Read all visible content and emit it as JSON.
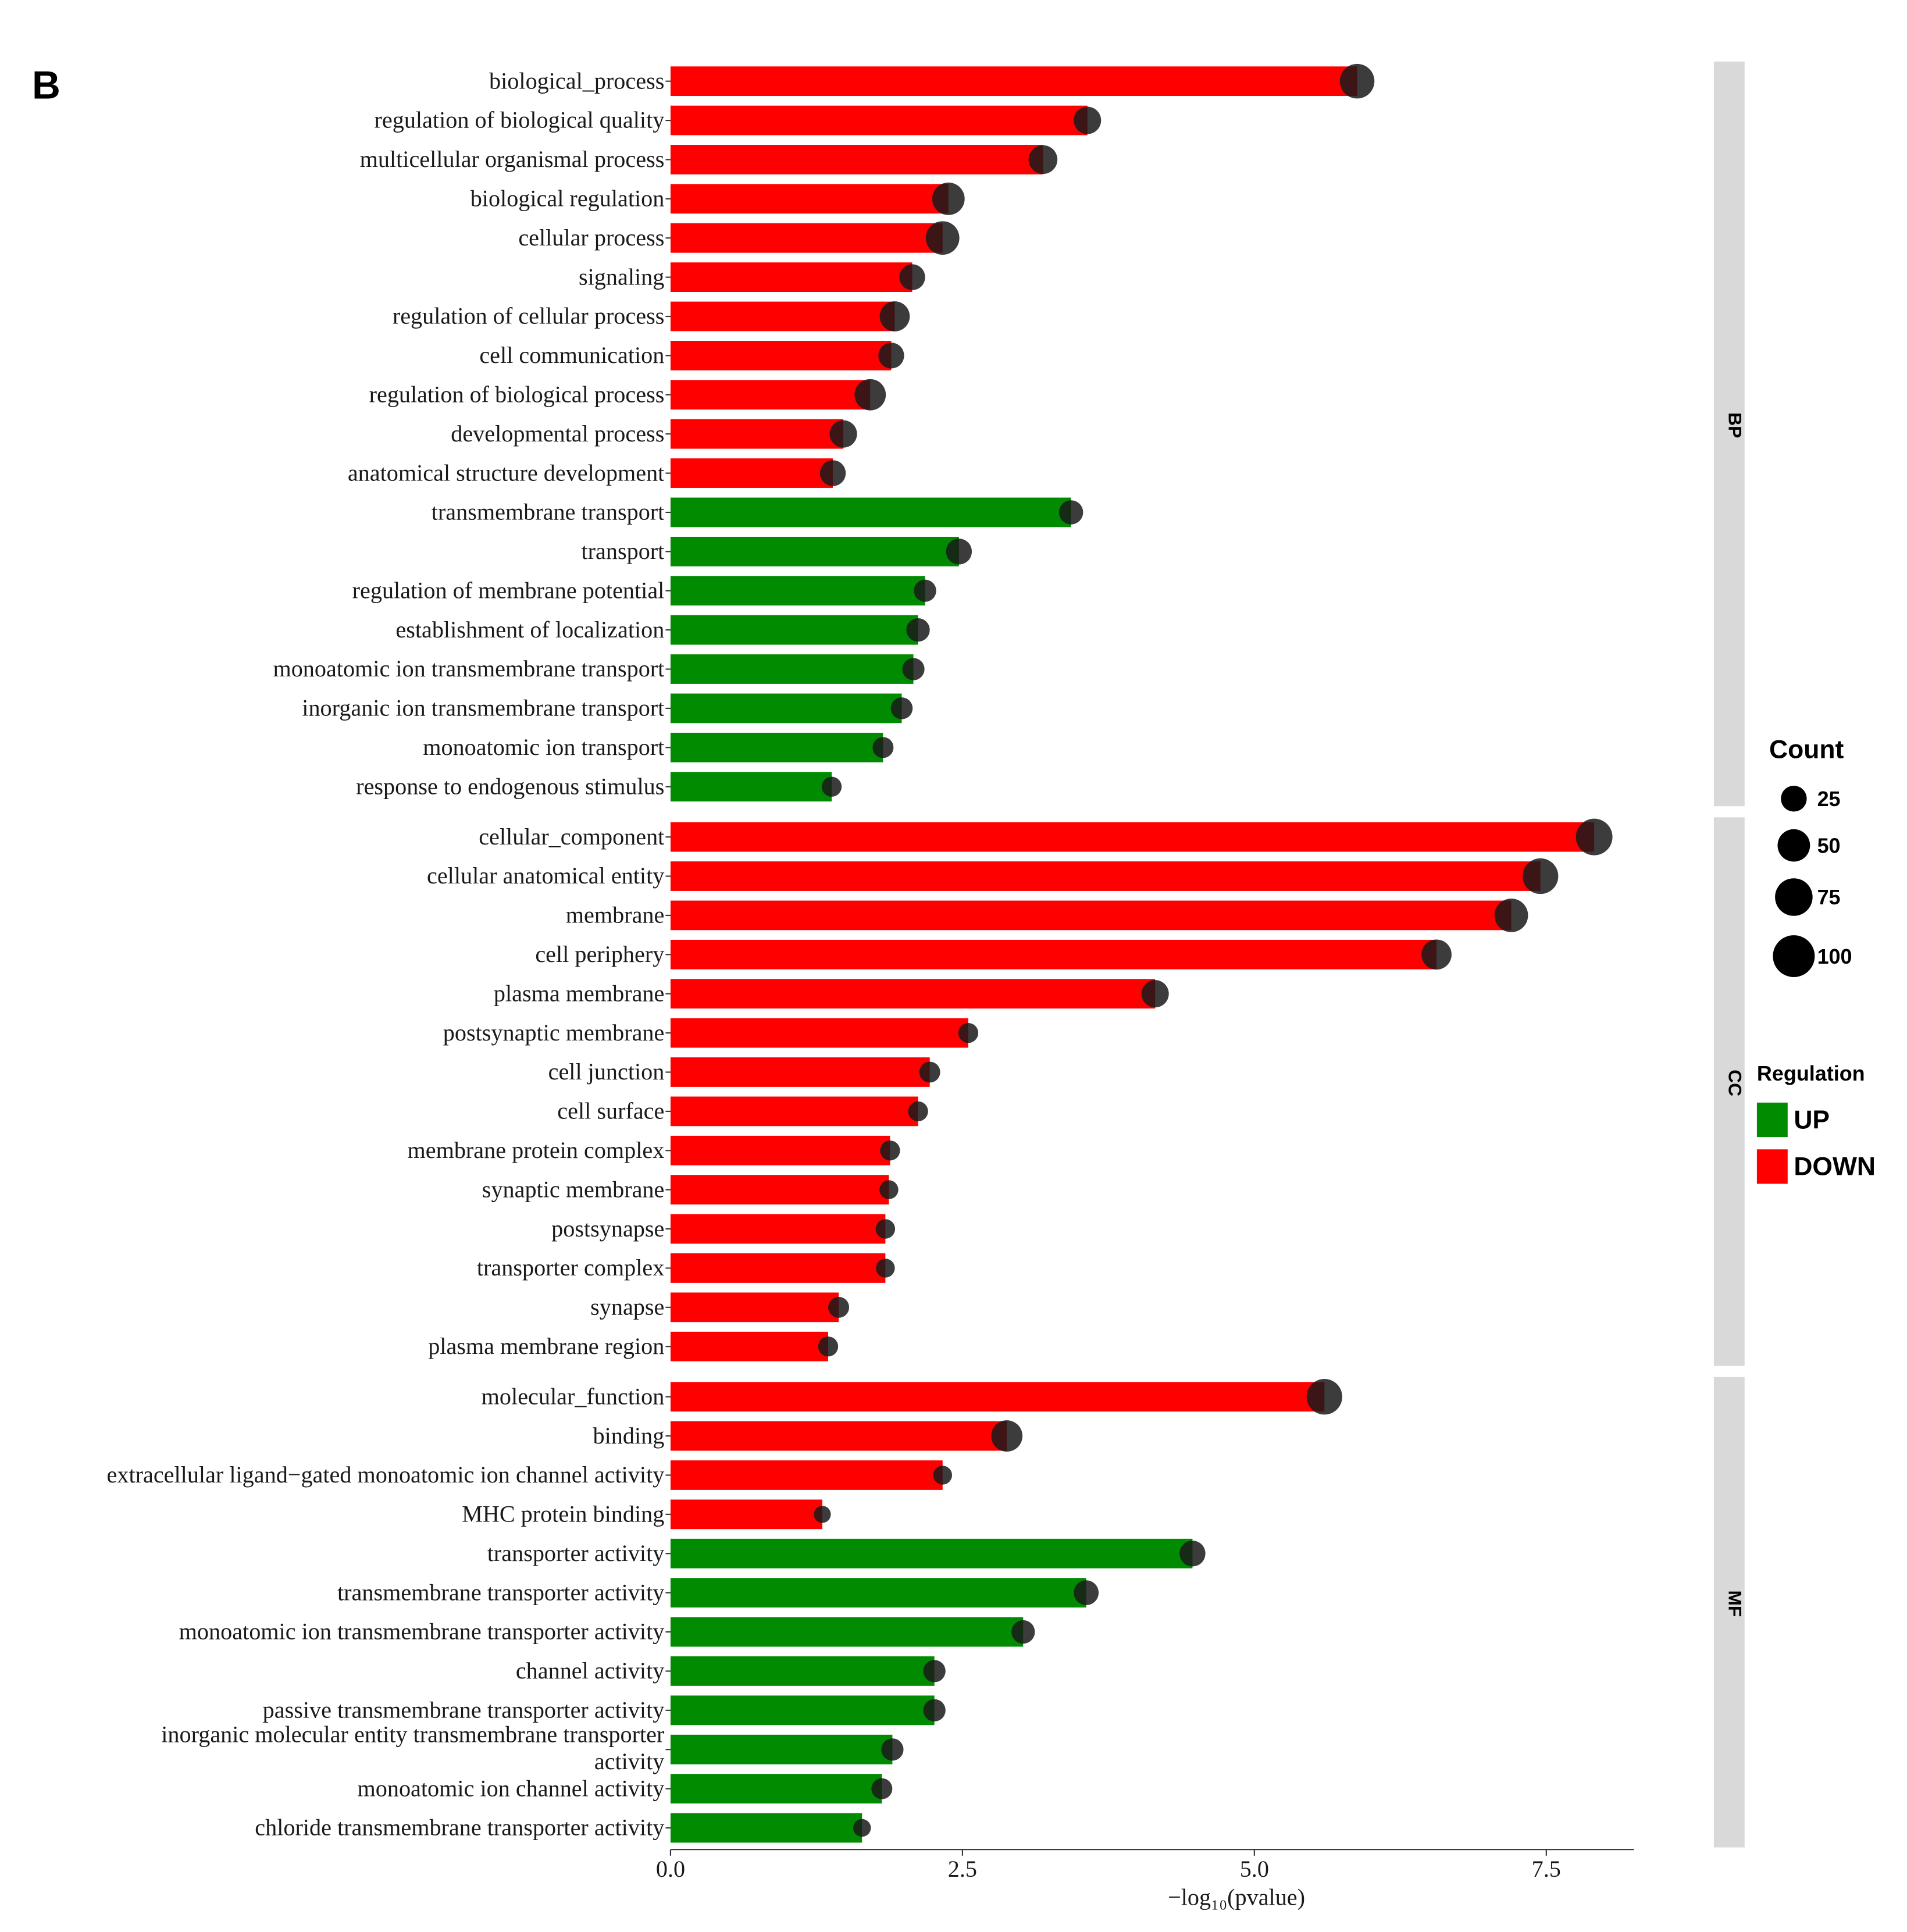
{
  "chart_data": {
    "type": "bar",
    "panel_label": "B",
    "xlabel": "−log₁₀(pvalue)",
    "xlim": [
      0,
      8.25
    ],
    "xticks": [
      {
        "value": 0,
        "label": "0.0"
      },
      2.5,
      {
        "value": 5,
        "label": "5.0"
      },
      7.5
    ],
    "series": [
      {
        "name": "UP",
        "color": "#008B00"
      },
      {
        "name": "DOWN",
        "color": "#FF0000"
      }
    ],
    "legend_title": "Regulation",
    "size_legend": {
      "title": "Count",
      "values": [
        25,
        50,
        75,
        100
      ]
    },
    "facets": [
      {
        "name": "BP",
        "categories": [
          "biological_process",
          "regulation of biological quality",
          "multicellular organismal process",
          "biological regulation",
          "cellular process",
          "signaling",
          "regulation of cellular process",
          "cell communication",
          "regulation of biological process",
          "developmental process",
          "anatomical structure development",
          "transmembrane transport",
          "transport",
          "regulation of membrane potential",
          "establishment of localization",
          "monoatomic ion transmembrane transport",
          "inorganic ion transmembrane transport",
          "monoatomic ion transport",
          "response to endogenous stimulus"
        ],
        "values": [
          5.88,
          3.57,
          3.19,
          2.38,
          2.33,
          2.07,
          1.92,
          1.89,
          1.71,
          1.48,
          1.39,
          3.43,
          2.47,
          2.18,
          2.12,
          2.08,
          1.98,
          1.82,
          1.38
        ],
        "counts": [
          60,
          30,
          35,
          50,
          55,
          25,
          40,
          25,
          45,
          30,
          25,
          20,
          25,
          15,
          18,
          15,
          14,
          12,
          10
        ],
        "regulation": [
          "DOWN",
          "DOWN",
          "DOWN",
          "DOWN",
          "DOWN",
          "DOWN",
          "DOWN",
          "DOWN",
          "DOWN",
          "DOWN",
          "DOWN",
          "UP",
          "UP",
          "UP",
          "UP",
          "UP",
          "UP",
          "UP",
          "UP"
        ]
      },
      {
        "name": "CC",
        "categories": [
          "cellular_component",
          "cellular anatomical entity",
          "membrane",
          "cell periphery",
          "plasma membrane",
          "postsynaptic membrane",
          "cell junction",
          "cell surface",
          "membrane protein complex",
          "synaptic membrane",
          "postsynapse",
          "transporter complex",
          "synapse",
          "plasma membrane region"
        ],
        "values": [
          7.91,
          7.45,
          7.2,
          6.56,
          4.15,
          2.55,
          2.22,
          2.12,
          1.88,
          1.87,
          1.84,
          1.84,
          1.44,
          1.35
        ],
        "counts": [
          70,
          65,
          55,
          40,
          30,
          10,
          12,
          10,
          10,
          8,
          9,
          8,
          12,
          10
        ],
        "regulation": [
          "DOWN",
          "DOWN",
          "DOWN",
          "DOWN",
          "DOWN",
          "DOWN",
          "DOWN",
          "DOWN",
          "DOWN",
          "DOWN",
          "DOWN",
          "DOWN",
          "DOWN",
          "DOWN"
        ]
      },
      {
        "name": "MF",
        "categories": [
          "molecular_function",
          "binding",
          "extracellular ligand−gated monoatomic ion channel activity",
          "MHC protein binding",
          "transporter activity",
          "transmembrane transporter activity",
          "monoatomic ion transmembrane transporter activity",
          "channel activity",
          "passive transmembrane transporter activity",
          "inorganic molecular entity transmembrane transporter\nactivity",
          "monoatomic ion channel activity",
          "chloride transmembrane transporter activity"
        ],
        "values": [
          5.6,
          2.88,
          2.33,
          1.3,
          4.47,
          3.56,
          3.02,
          2.26,
          2.26,
          1.9,
          1.81,
          1.64
        ],
        "counts": [
          65,
          45,
          8,
          5,
          25,
          22,
          18,
          15,
          15,
          15,
          12,
          6
        ],
        "regulation": [
          "DOWN",
          "DOWN",
          "DOWN",
          "DOWN",
          "UP",
          "UP",
          "UP",
          "UP",
          "UP",
          "UP",
          "UP",
          "UP"
        ]
      }
    ]
  }
}
